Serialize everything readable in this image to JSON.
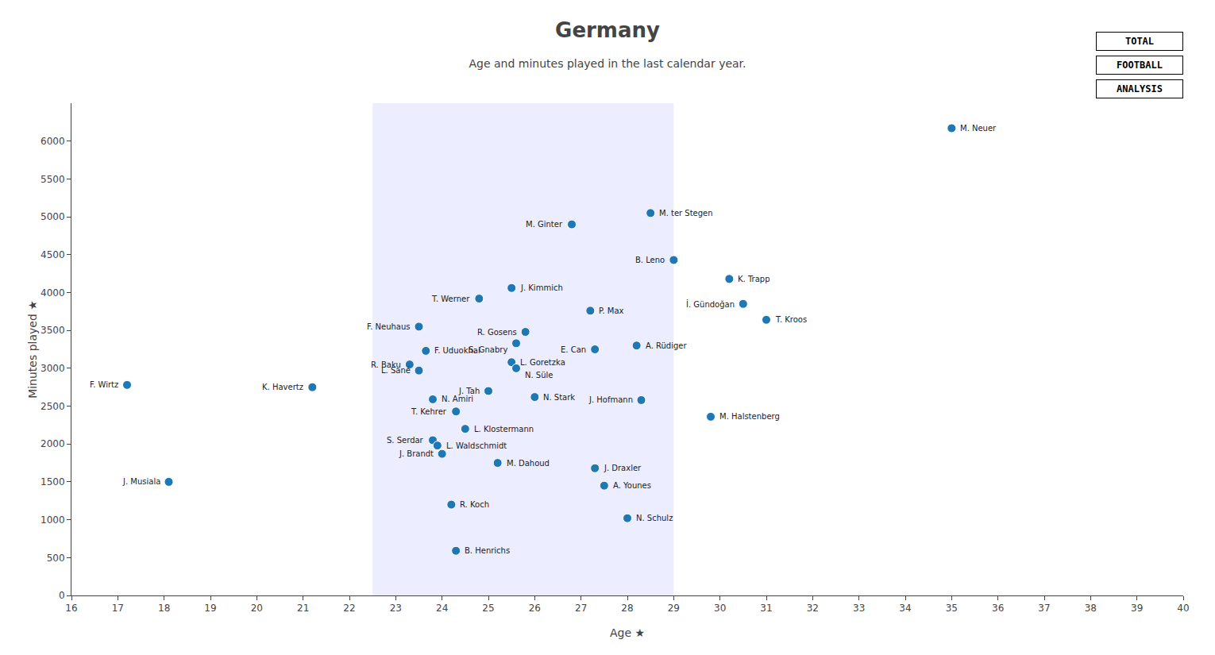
{
  "chart_data": {
    "type": "scatter",
    "title": "Germany",
    "subtitle": "Age and minutes played in the last calendar year.",
    "xlabel": "Age ★",
    "ylabel": "Minutes played ★",
    "annotations": [
      "TOTAL",
      "FOOTBALL",
      "ANALYSIS"
    ],
    "highlight_range": [
      22.5,
      29.0
    ],
    "labels": [
      "F. Wirtz",
      "J. Musiala",
      "K. Havertz",
      "F. Neuhaus",
      "R. Baku",
      "L. Sané",
      "F. Uduokhai",
      "N. Amiri",
      "S. Serdar",
      "L. Waldschmidt",
      "J. Brandt",
      "T. Kehrer",
      "L. Klostermann",
      "R. Koch",
      "B. Henrichs",
      "T. Werner",
      "J. Tah",
      "M. Dahoud",
      "J. Kimmich",
      "L. Goretzka",
      "N. Süle",
      "S. Gnabry",
      "R. Gosens",
      "N. Stark",
      "M. Ginter",
      "P. Max",
      "E. Can",
      "J. Draxler",
      "A. Younes",
      "A. Rüdiger",
      "J. Hofmann",
      "N. Schulz",
      "M. ter Stegen",
      "B. Leno",
      "M. Halstenberg",
      "K. Trapp",
      "İ. Gündoğan",
      "T. Kroos",
      "M. Neuer"
    ],
    "x": [
      17.2,
      18.1,
      21.2,
      23.5,
      23.3,
      23.5,
      23.65,
      23.8,
      23.8,
      23.9,
      24.0,
      24.3,
      24.5,
      24.2,
      24.3,
      24.8,
      25.0,
      25.2,
      25.5,
      25.5,
      25.6,
      25.6,
      25.8,
      26.0,
      26.8,
      27.2,
      27.3,
      27.3,
      27.5,
      28.2,
      28.3,
      28.0,
      28.5,
      29.0,
      29.8,
      30.2,
      30.5,
      31.0,
      35.0
    ],
    "values": [
      2780,
      1500,
      2750,
      3550,
      3050,
      2970,
      3230,
      2590,
      2050,
      1980,
      1870,
      2430,
      2200,
      1200,
      590,
      3920,
      2700,
      1750,
      4060,
      3080,
      3000,
      3330,
      3480,
      2620,
      4900,
      3760,
      3250,
      1680,
      1450,
      3300,
      2580,
      1020,
      5050,
      4430,
      2360,
      4180,
      3850,
      3640,
      6170
    ],
    "marker": "circle",
    "xlim": [
      16,
      40
    ],
    "ylim": [
      0,
      6500
    ],
    "xticks": [
      16,
      17,
      18,
      19,
      20,
      21,
      22,
      23,
      24,
      25,
      26,
      27,
      28,
      29,
      30,
      31,
      32,
      33,
      34,
      35,
      36,
      37,
      38,
      39,
      40
    ],
    "yticks": [
      0,
      500,
      1000,
      1500,
      2000,
      2500,
      3000,
      3500,
      4000,
      4500,
      5000,
      5500,
      6000
    ],
    "grid": false
  }
}
